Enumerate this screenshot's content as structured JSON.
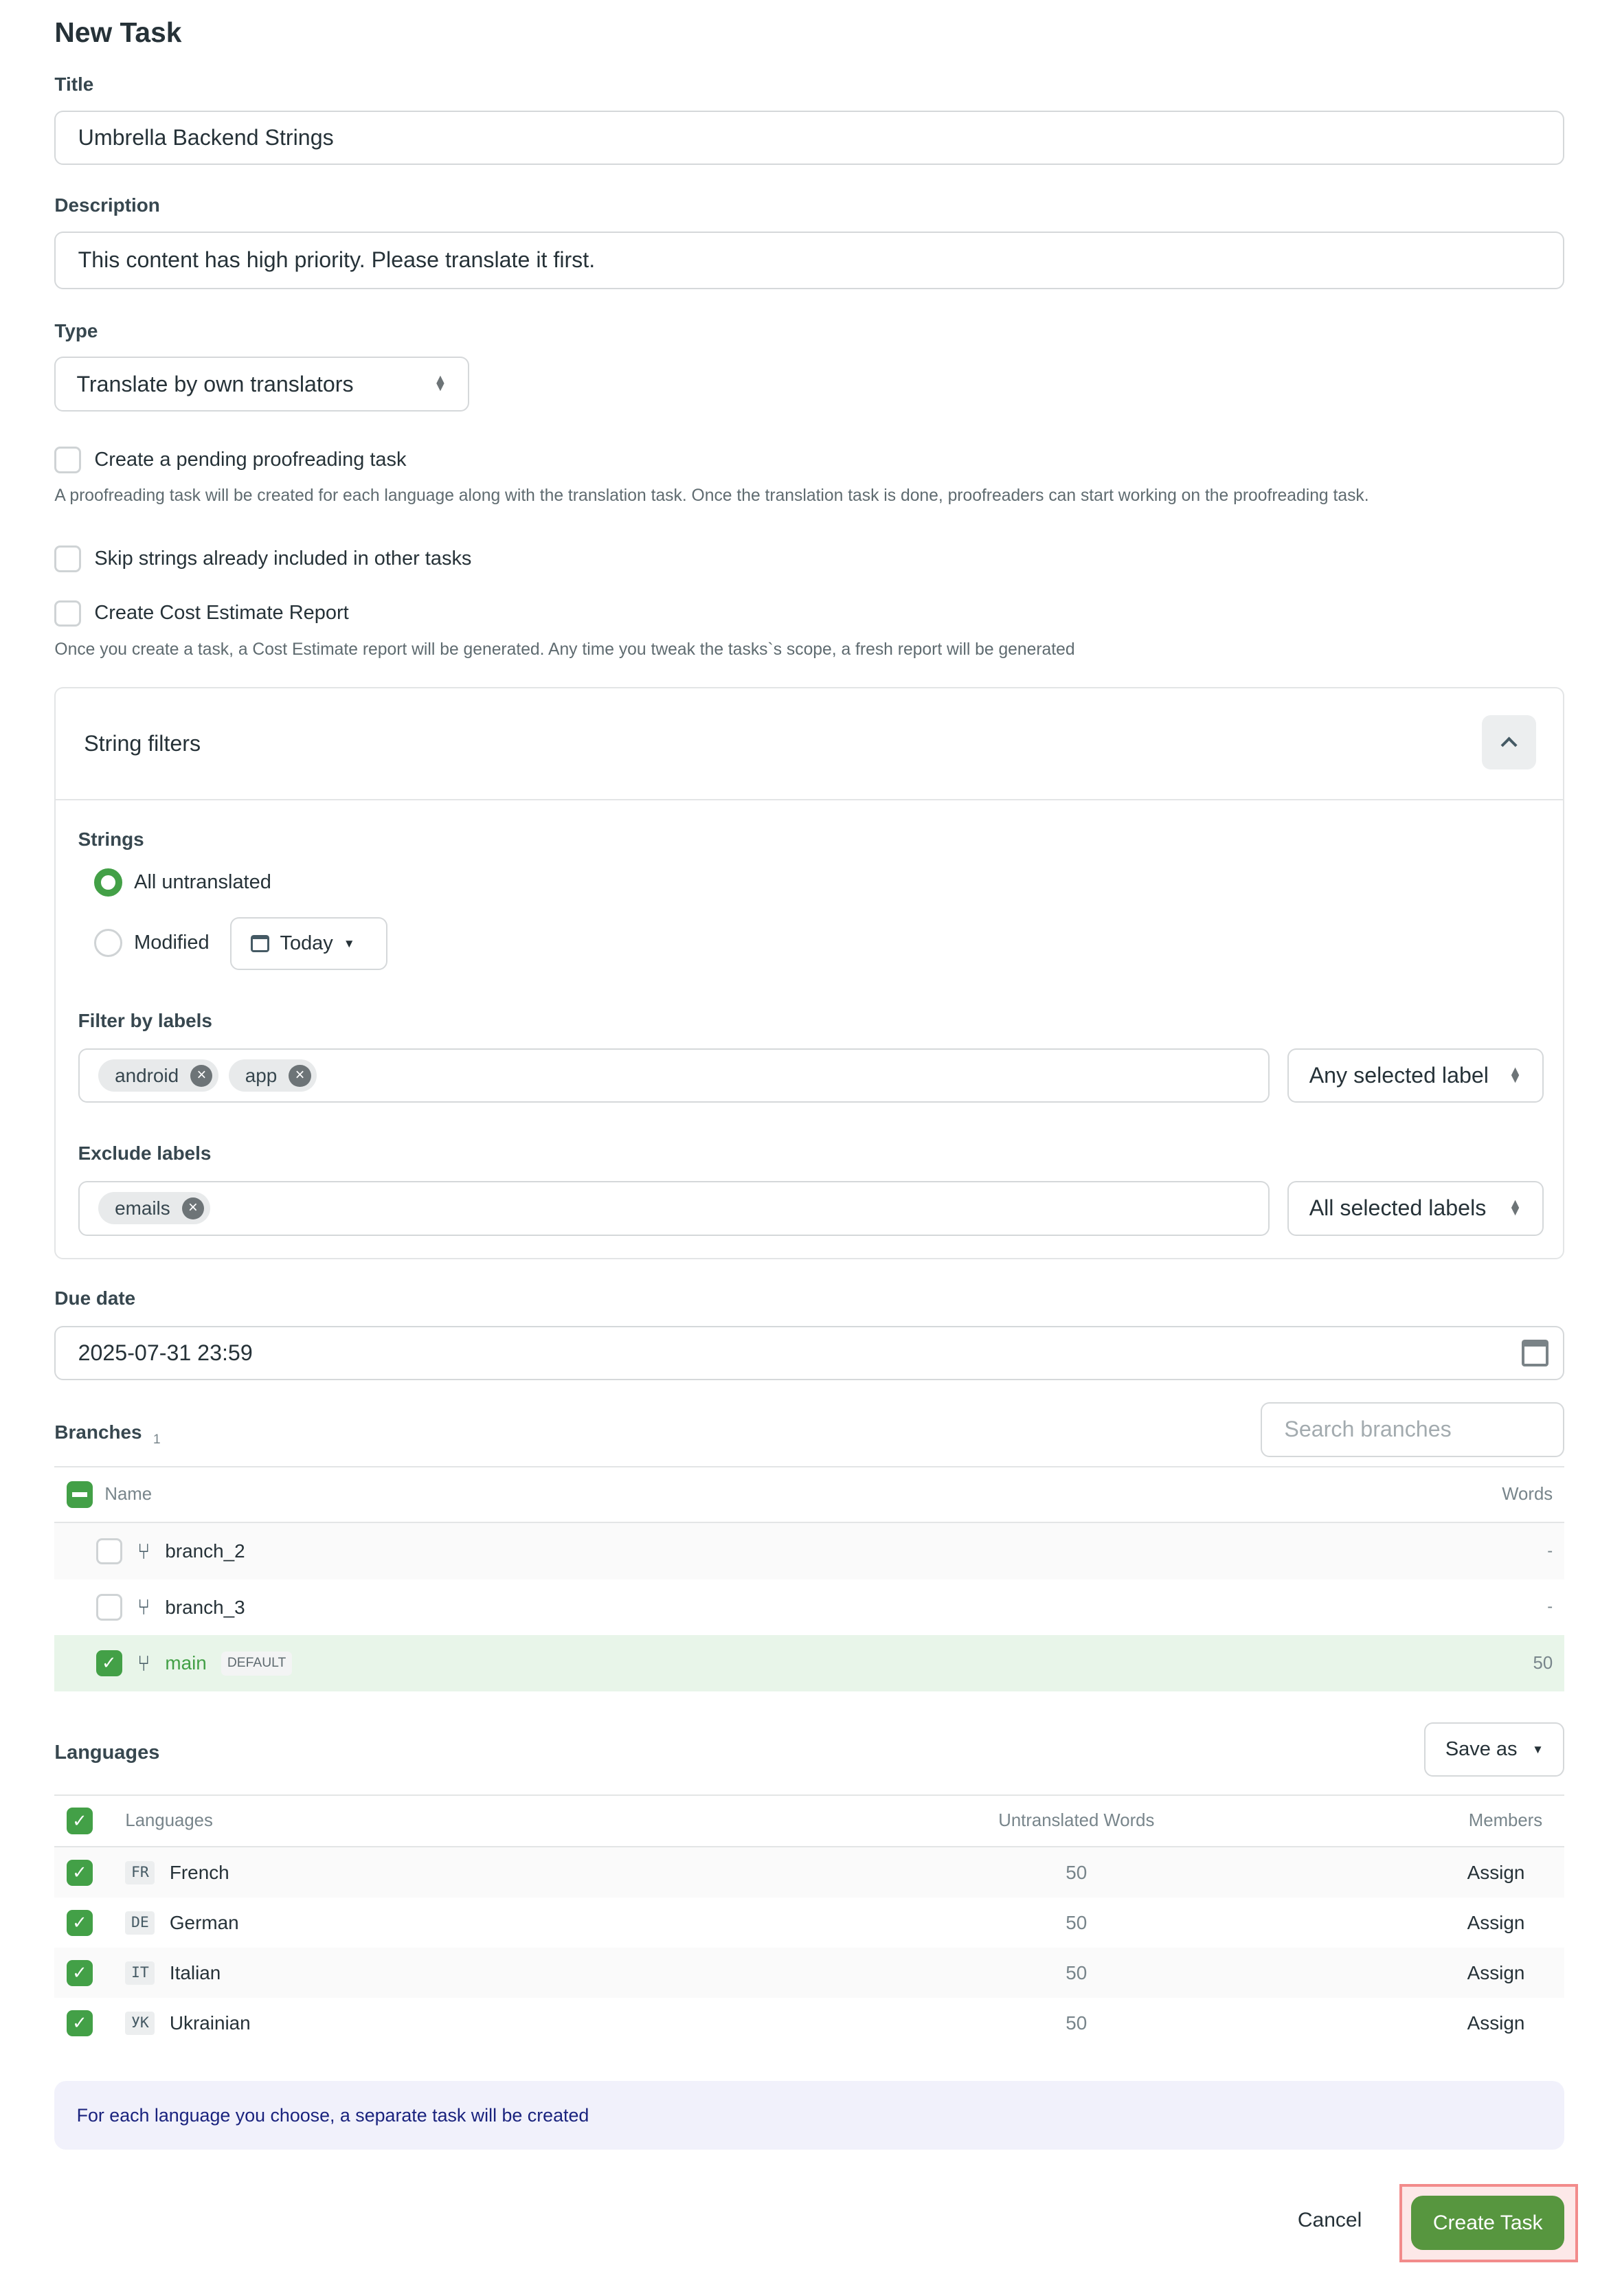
{
  "page_title": "New Task",
  "title_field": {
    "label": "Title",
    "value": "Umbrella Backend Strings"
  },
  "description_field": {
    "label": "Description",
    "value": "This content has high priority. Please translate it first."
  },
  "type_field": {
    "label": "Type",
    "value": "Translate by own translators"
  },
  "options": [
    {
      "label": "Create a pending proofreading task",
      "checked": false,
      "help": "A proofreading task will be created for each language along with the translation task. Once the translation task is done, proofreaders can start working on the proofreading task."
    },
    {
      "label": "Skip strings already included in other tasks",
      "checked": false
    },
    {
      "label": "Create Cost Estimate Report",
      "checked": false,
      "help": "Once you create a task, a Cost Estimate report will be generated. Any time you tweak the tasks`s scope, a fresh report will be generated"
    }
  ],
  "string_filters": {
    "title": "String filters",
    "strings_label": "Strings",
    "radio_all": "All untranslated",
    "radio_modified": "Modified",
    "selected": "All untranslated",
    "modified_period": "Today",
    "filter_labels_label": "Filter by labels",
    "filter_tags": [
      "android",
      "app"
    ],
    "filter_mode": "Any selected label",
    "exclude_labels_label": "Exclude labels",
    "exclude_tags": [
      "emails"
    ],
    "exclude_mode": "All selected labels"
  },
  "due_date": {
    "label": "Due date",
    "value": "2025-07-31 23:59"
  },
  "branches": {
    "label": "Branches",
    "count": "1",
    "search_placeholder": "Search branches",
    "col_name": "Name",
    "col_words": "Words",
    "rows": [
      {
        "name": "branch_2",
        "words": "-",
        "checked": false
      },
      {
        "name": "branch_3",
        "words": "-",
        "checked": false
      },
      {
        "name": "main",
        "badge": "DEFAULT",
        "words": "50",
        "checked": true
      }
    ]
  },
  "languages": {
    "label": "Languages",
    "save_as": "Save as",
    "col_lang": "Languages",
    "col_untranslated": "Untranslated Words",
    "col_members": "Members",
    "rows": [
      {
        "code": "FR",
        "name": "French",
        "words": "50",
        "action": "Assign"
      },
      {
        "code": "DE",
        "name": "German",
        "words": "50",
        "action": "Assign"
      },
      {
        "code": "IT",
        "name": "Italian",
        "words": "50",
        "action": "Assign"
      },
      {
        "code": "УК",
        "name": "Ukrainian",
        "words": "50",
        "action": "Assign"
      }
    ]
  },
  "info": "For each language you choose, a separate task will be created",
  "buttons": {
    "cancel": "Cancel",
    "create": "Create Task"
  },
  "colors": {
    "accent": "#43a047",
    "primary_button": "#57963f",
    "highlight": "#e8f5e9",
    "info_bg": "#f1f1fb",
    "info_text": "#1a237e"
  }
}
